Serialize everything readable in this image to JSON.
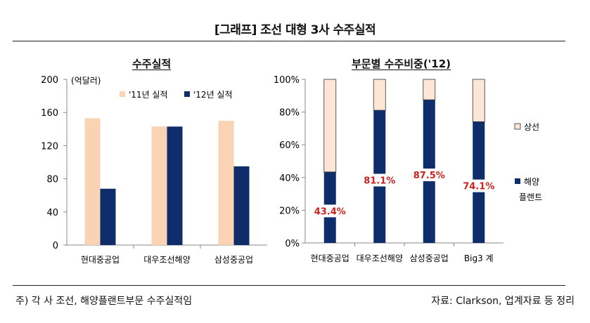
{
  "title": "[그래프] 조선 대형 3사 수주실적",
  "footnote": "주) 각 사 조선, 해양플랜트부문 수주실적임",
  "source": "자료: Clarkson, 업계자료 등 정리",
  "colors": {
    "orders_2011": "#FAD2B4",
    "orders_2012": "#0F2C6B",
    "share_ship": "#FDE6D6",
    "share_offshore": "#0F2C6B",
    "label": "#CC2222"
  },
  "chart_data": [
    {
      "type": "bar",
      "title": "수주실적",
      "unit_label": "(억달러)",
      "categories": [
        "현대중공업",
        "대우조선해양",
        "삼성중공업"
      ],
      "series": [
        {
          "name": "'11년 실적",
          "values": [
            153,
            143,
            150
          ]
        },
        {
          "name": "'12년 실적",
          "values": [
            68,
            143,
            95
          ]
        }
      ],
      "ylim": [
        0,
        200
      ],
      "yticks": [
        0,
        40,
        80,
        120,
        160,
        200
      ],
      "legend_position": "top"
    },
    {
      "type": "bar",
      "stacked": true,
      "title": "부문별 수주비중('12)",
      "categories": [
        "현대중공업",
        "대우조선해양",
        "삼성중공업",
        "Big3 계"
      ],
      "series": [
        {
          "name": "해양 플랜트",
          "values": [
            43.4,
            81.1,
            87.5,
            74.1
          ]
        },
        {
          "name": "상선",
          "values": [
            56.6,
            18.9,
            12.5,
            25.9
          ]
        }
      ],
      "data_labels": [
        "43.4%",
        "81.1%",
        "87.5%",
        "74.1%"
      ],
      "ylim": [
        0,
        100
      ],
      "yticks": [
        "0%",
        "20%",
        "40%",
        "60%",
        "80%",
        "100%"
      ],
      "legend_position": "right"
    }
  ]
}
